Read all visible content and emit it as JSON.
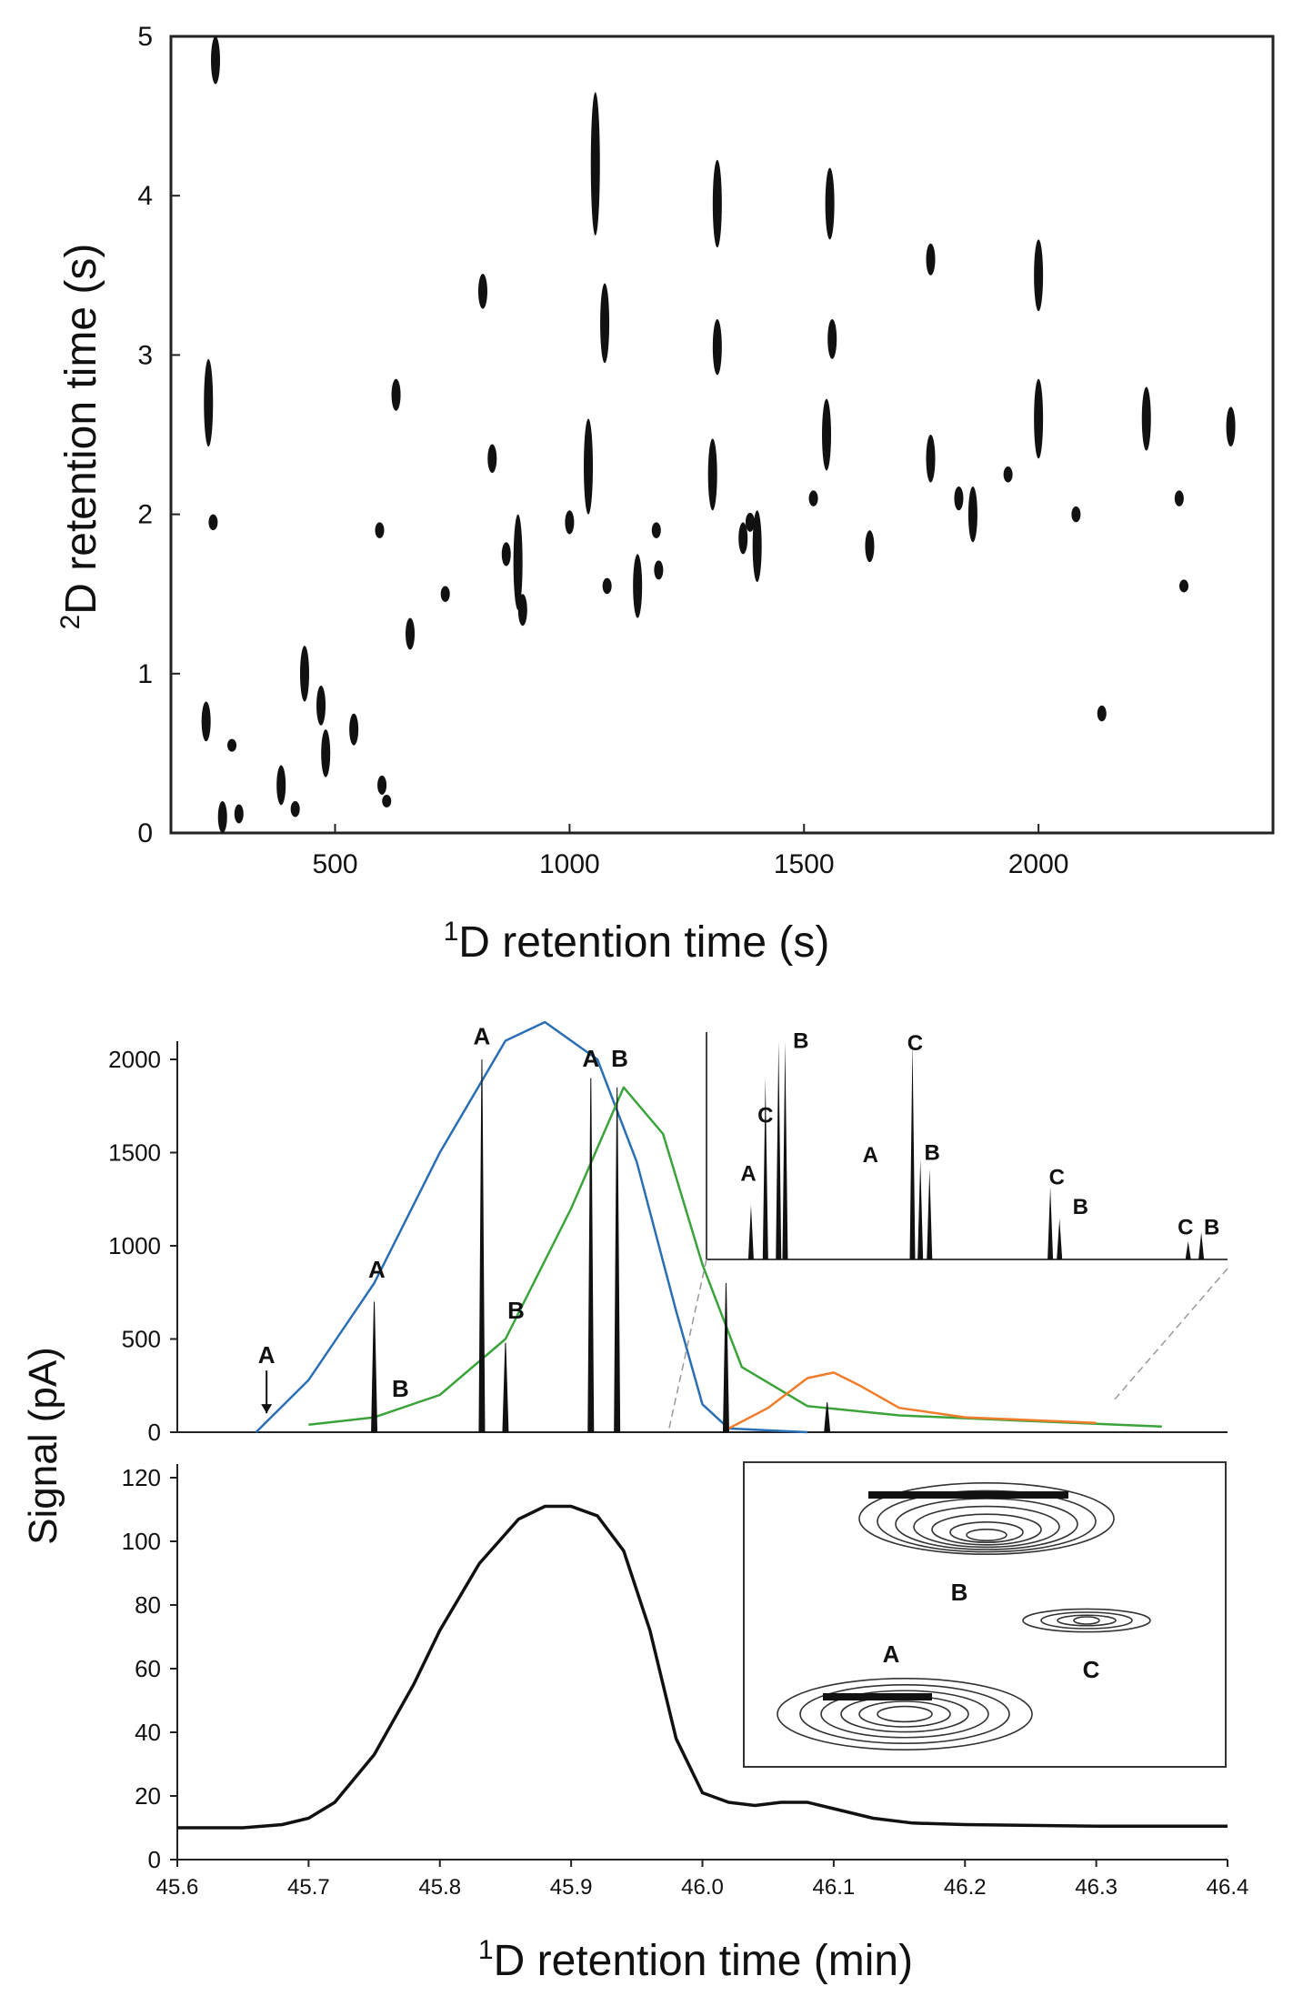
{
  "chart_data": [
    {
      "type": "scatter",
      "panel": "2D contour plot",
      "xlabel_sup": "1",
      "xlabel": "D retention time (s)",
      "ylabel_sup": "2",
      "ylabel": "D retention time (s)",
      "xlim": [
        150,
        2500
      ],
      "ylim": [
        0,
        5
      ],
      "xticks": [
        500,
        1000,
        1500,
        2000
      ],
      "yticks": [
        0,
        1,
        2,
        3,
        4,
        5
      ],
      "grid": false,
      "spots": [
        {
          "x": 245,
          "y": 4.85,
          "h": 0.3
        },
        {
          "x": 230,
          "y": 2.7,
          "h": 0.55
        },
        {
          "x": 240,
          "y": 1.95,
          "h": 0.1
        },
        {
          "x": 225,
          "y": 0.7,
          "h": 0.25
        },
        {
          "x": 260,
          "y": 0.1,
          "h": 0.2
        },
        {
          "x": 295,
          "y": 0.12,
          "h": 0.12
        },
        {
          "x": 280,
          "y": 0.55,
          "h": 0.08
        },
        {
          "x": 385,
          "y": 0.3,
          "h": 0.25
        },
        {
          "x": 415,
          "y": 0.15,
          "h": 0.1
        },
        {
          "x": 435,
          "y": 1.0,
          "h": 0.35
        },
        {
          "x": 470,
          "y": 0.8,
          "h": 0.25
        },
        {
          "x": 480,
          "y": 0.5,
          "h": 0.3
        },
        {
          "x": 540,
          "y": 0.65,
          "h": 0.2
        },
        {
          "x": 600,
          "y": 0.3,
          "h": 0.12
        },
        {
          "x": 610,
          "y": 0.2,
          "h": 0.08
        },
        {
          "x": 595,
          "y": 1.9,
          "h": 0.1
        },
        {
          "x": 630,
          "y": 2.75,
          "h": 0.2
        },
        {
          "x": 660,
          "y": 1.25,
          "h": 0.2
        },
        {
          "x": 735,
          "y": 1.5,
          "h": 0.1
        },
        {
          "x": 815,
          "y": 3.4,
          "h": 0.22
        },
        {
          "x": 835,
          "y": 2.35,
          "h": 0.18
        },
        {
          "x": 865,
          "y": 1.75,
          "h": 0.15
        },
        {
          "x": 890,
          "y": 1.7,
          "h": 0.6
        },
        {
          "x": 900,
          "y": 1.4,
          "h": 0.2
        },
        {
          "x": 1000,
          "y": 1.95,
          "h": 0.15
        },
        {
          "x": 1040,
          "y": 2.3,
          "h": 0.6
        },
        {
          "x": 1055,
          "y": 4.2,
          "h": 0.9
        },
        {
          "x": 1075,
          "y": 3.2,
          "h": 0.5
        },
        {
          "x": 1080,
          "y": 1.55,
          "h": 0.1
        },
        {
          "x": 1145,
          "y": 1.55,
          "h": 0.4
        },
        {
          "x": 1185,
          "y": 1.9,
          "h": 0.1
        },
        {
          "x": 1190,
          "y": 1.65,
          "h": 0.12
        },
        {
          "x": 1315,
          "y": 3.95,
          "h": 0.55
        },
        {
          "x": 1315,
          "y": 3.05,
          "h": 0.35
        },
        {
          "x": 1305,
          "y": 2.25,
          "h": 0.45
        },
        {
          "x": 1370,
          "y": 1.85,
          "h": 0.2
        },
        {
          "x": 1385,
          "y": 1.95,
          "h": 0.12
        },
        {
          "x": 1400,
          "y": 1.8,
          "h": 0.45
        },
        {
          "x": 1520,
          "y": 2.1,
          "h": 0.1
        },
        {
          "x": 1555,
          "y": 3.95,
          "h": 0.45
        },
        {
          "x": 1560,
          "y": 3.1,
          "h": 0.25
        },
        {
          "x": 1548,
          "y": 2.5,
          "h": 0.45
        },
        {
          "x": 1640,
          "y": 1.8,
          "h": 0.2
        },
        {
          "x": 1770,
          "y": 3.6,
          "h": 0.2
        },
        {
          "x": 1770,
          "y": 2.35,
          "h": 0.3
        },
        {
          "x": 1830,
          "y": 2.1,
          "h": 0.15
        },
        {
          "x": 1860,
          "y": 2.0,
          "h": 0.35
        },
        {
          "x": 1935,
          "y": 2.25,
          "h": 0.1
        },
        {
          "x": 2000,
          "y": 3.5,
          "h": 0.45
        },
        {
          "x": 2000,
          "y": 2.6,
          "h": 0.5
        },
        {
          "x": 2080,
          "y": 2.0,
          "h": 0.1
        },
        {
          "x": 2135,
          "y": 0.75,
          "h": 0.1
        },
        {
          "x": 2230,
          "y": 2.6,
          "h": 0.4
        },
        {
          "x": 2300,
          "y": 2.1,
          "h": 0.1
        },
        {
          "x": 2310,
          "y": 1.55,
          "h": 0.08
        },
        {
          "x": 2410,
          "y": 2.55,
          "h": 0.25
        }
      ]
    },
    {
      "type": "line",
      "panel": "GCxGC modulated trace",
      "ylabel": "Signal (pA)",
      "xlim": [
        45.6,
        46.4
      ],
      "ylim": [
        0,
        2000
      ],
      "yticks": [
        0,
        500,
        1000,
        1500,
        2000
      ],
      "grid": false,
      "modulated_peaks": [
        {
          "x": 45.75,
          "y": 700
        },
        {
          "x": 45.832,
          "y": 2000
        },
        {
          "x": 45.85,
          "y": 480
        },
        {
          "x": 45.915,
          "y": 1900
        },
        {
          "x": 45.935,
          "y": 1850
        },
        {
          "x": 46.018,
          "y": 800
        },
        {
          "x": 46.095,
          "y": 160
        }
      ],
      "envelopes": [
        {
          "color": "#2a6fb5",
          "x": [
            45.66,
            45.7,
            45.75,
            45.8,
            45.85,
            45.88,
            45.92,
            45.95,
            45.98,
            46.0,
            46.02,
            46.08
          ],
          "y": [
            0,
            280,
            800,
            1500,
            2100,
            2200,
            2000,
            1450,
            650,
            150,
            20,
            0
          ]
        },
        {
          "color": "#3aa33a",
          "x": [
            45.7,
            45.75,
            45.8,
            45.85,
            45.9,
            45.94,
            45.97,
            46.0,
            46.03,
            46.08,
            46.15,
            46.25,
            46.35
          ],
          "y": [
            40,
            80,
            200,
            500,
            1200,
            1850,
            1600,
            900,
            350,
            140,
            90,
            60,
            30
          ]
        },
        {
          "color": "#f07d2c",
          "x": [
            46.02,
            46.05,
            46.08,
            46.1,
            46.12,
            46.15,
            46.2,
            46.3
          ],
          "y": [
            20,
            130,
            290,
            320,
            250,
            130,
            80,
            50
          ]
        }
      ],
      "peak_labels": [
        {
          "text": "A",
          "x": 45.668,
          "y": 370,
          "arrow": true
        },
        {
          "text": "A",
          "x": 45.752,
          "y": 830
        },
        {
          "text": "B",
          "x": 45.77,
          "y": 190
        },
        {
          "text": "A",
          "x": 45.832,
          "y": 2080
        },
        {
          "text": "B",
          "x": 45.858,
          "y": 610
        },
        {
          "text": "A",
          "x": 45.915,
          "y": 1960
        },
        {
          "text": "B",
          "x": 45.937,
          "y": 1960
        }
      ],
      "inset_labels": [
        {
          "text": "A",
          "x": 46.035,
          "y": 1350
        },
        {
          "text": "C",
          "x": 46.048,
          "y": 1660
        },
        {
          "text": "B",
          "x": 46.075,
          "y": 2060
        },
        {
          "text": "A",
          "x": 46.128,
          "y": 1450
        },
        {
          "text": "C",
          "x": 46.162,
          "y": 2050
        },
        {
          "text": "B",
          "x": 46.175,
          "y": 1460
        },
        {
          "text": "C",
          "x": 46.27,
          "y": 1330
        },
        {
          "text": "B",
          "x": 46.288,
          "y": 1170
        },
        {
          "text": "C",
          "x": 46.368,
          "y": 1060
        },
        {
          "text": "B",
          "x": 46.388,
          "y": 1060
        }
      ]
    },
    {
      "type": "line",
      "panel": "1D trace",
      "xlabel_sup": "1",
      "xlabel": "D retention time (min)",
      "xlim": [
        45.6,
        46.4
      ],
      "ylim": [
        0,
        120
      ],
      "xticks": [
        45.6,
        45.7,
        45.8,
        45.9,
        46.0,
        46.1,
        46.2,
        46.3,
        46.4
      ],
      "xticklabels": [
        "45.6",
        "45.7",
        "45.8",
        "45.9",
        "46.0",
        "46.1",
        "46.2",
        "46.3",
        "46.4"
      ],
      "yticks": [
        0,
        20,
        40,
        60,
        80,
        100,
        120
      ],
      "grid": false,
      "x": [
        45.6,
        45.65,
        45.68,
        45.7,
        45.72,
        45.75,
        45.78,
        45.8,
        45.83,
        45.86,
        45.88,
        45.9,
        45.92,
        45.94,
        45.96,
        45.98,
        46.0,
        46.02,
        46.04,
        46.06,
        46.08,
        46.1,
        46.13,
        46.16,
        46.2,
        46.3,
        46.4
      ],
      "y": [
        10,
        10,
        11,
        13,
        18,
        33,
        55,
        72,
        93,
        107,
        111,
        111,
        108,
        97,
        72,
        38,
        21,
        18,
        17,
        18,
        18,
        16,
        13,
        11.5,
        11,
        10.5,
        10.5
      ],
      "inset_labels": [
        "B",
        "C",
        "A"
      ]
    }
  ]
}
